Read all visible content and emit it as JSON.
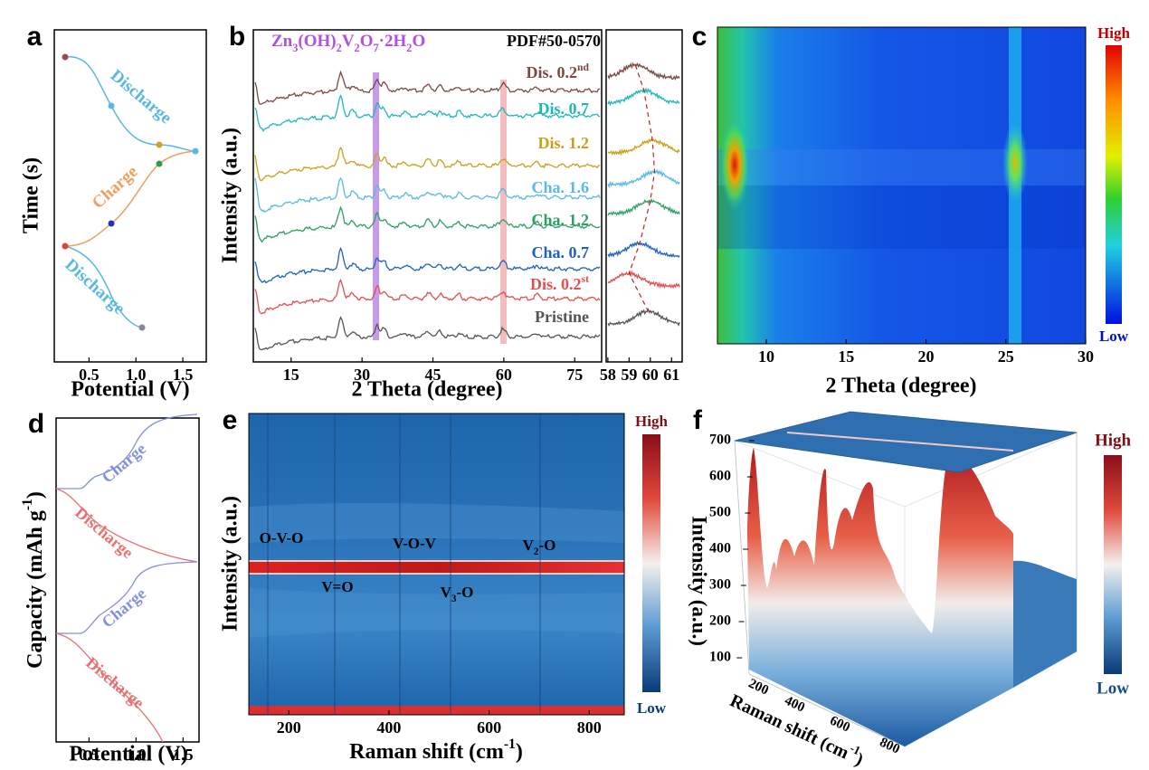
{
  "panels": {
    "a": {
      "label": "a",
      "ylabel": "Time (s)",
      "xlabel": "Potential (V)",
      "xlim": [
        0.13,
        1.75
      ],
      "xticks": [
        0.5,
        {
          "value": 1,
          "label": "1.0"
        },
        1.5
      ],
      "curve_labels": [
        "Discharge",
        "Charge",
        "Discharge"
      ]
    },
    "b": {
      "label": "b",
      "ylabel": "Intensity (a.u.)",
      "xlabel": "2 Theta (degree)",
      "xlim": [
        7,
        80.7
      ],
      "xticks": [
        15,
        30,
        45,
        60,
        75
      ],
      "inset_xlim": [
        57.92,
        61.5
      ],
      "inset_xticks": [
        58,
        59,
        60,
        61
      ],
      "formula": [
        "Zn",
        {
          "sub": "3"
        },
        "(OH)",
        {
          "sub": "2"
        },
        "V",
        {
          "sub": "2"
        },
        "O",
        {
          "sub": "7"
        },
        "·2H",
        {
          "sub": "2"
        },
        "O"
      ],
      "reference": "PDF#50-0570",
      "series": [
        {
          "name": [
            "Dis. 0.2",
            {
              "sup": "nd"
            }
          ],
          "color": "#7a4a42"
        },
        {
          "name": "Dis. 0.7",
          "color": "#1fb8b8"
        },
        {
          "name": "Dis. 1.2",
          "color": "#c9a01a"
        },
        {
          "name": "Cha. 1.6",
          "color": "#5bb8e0"
        },
        {
          "name": "Cha. 1.2",
          "color": "#2e9e62"
        },
        {
          "name": "Cha. 0.7",
          "color": "#2060c0"
        },
        {
          "name": [
            "Dis. 0.2",
            {
              "sup": "st"
            }
          ],
          "color": "#e05050"
        },
        {
          "name": "Pristine",
          "color": "#555555"
        }
      ]
    },
    "c": {
      "label": "c",
      "xlabel": "2 Theta (degree)",
      "xlim": [
        6.94,
        30
      ],
      "xticks": [
        10,
        15,
        20,
        25,
        30
      ],
      "colorbar": {
        "high": "High",
        "low": "Low"
      }
    },
    "d": {
      "label": "d",
      "ylabel": [
        "Capacity (mAh g",
        {
          "sup": "-1"
        },
        ")"
      ],
      "xlabel": "Potential (V)",
      "xlim": [
        0.15,
        1.67
      ],
      "xticks": [
        0.5,
        {
          "value": 1,
          "label": "1.0"
        },
        1.5
      ],
      "curve_labels": [
        "Charge",
        "Discharge",
        "Charge",
        "Discharge"
      ]
    },
    "e": {
      "label": "e",
      "ylabel": "Intensity (a.u.)",
      "xlabel": [
        "Raman shift (cm",
        {
          "sup": "-1"
        },
        ")"
      ],
      "xlim": [
        120,
        870
      ],
      "xticks": [
        200,
        400,
        600,
        800
      ],
      "peaks": [
        "O-V-O",
        "V-O-V",
        [
          "V",
          {
            "sub": "2"
          },
          "-O"
        ],
        "V=O",
        [
          "V",
          {
            "sub": "3"
          },
          "-O"
        ]
      ],
      "colorbar": {
        "high": "High",
        "low": "Low"
      }
    },
    "f": {
      "label": "f",
      "zlabel": "Intensity (a.u.)",
      "xlabel": [
        "Raman shift (cm",
        {
          "sup": "-1"
        },
        ")"
      ],
      "zlim": [
        0,
        700
      ],
      "zticks": [
        100,
        200,
        300,
        400,
        500,
        600,
        700
      ],
      "xticks": [
        200,
        400,
        600,
        800
      ],
      "colorbar": {
        "high": "High",
        "low": "Low"
      }
    }
  }
}
